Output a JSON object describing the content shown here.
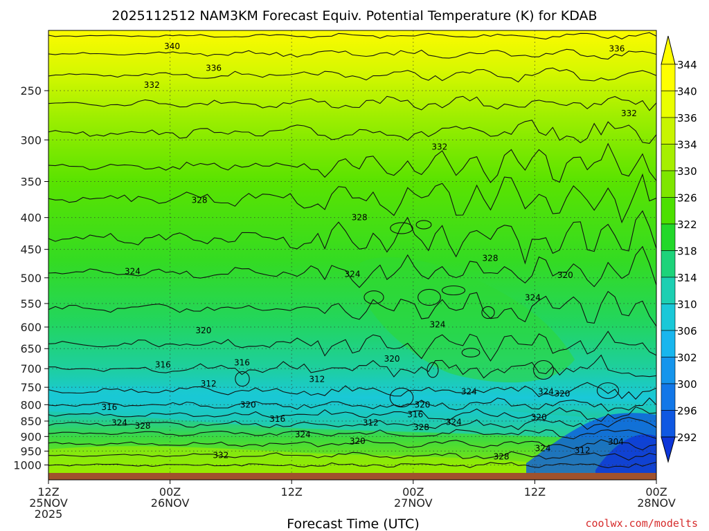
{
  "chart_data": {
    "type": "heatmap",
    "title": "2025112512 NAM3KM Forecast Equiv. Potential Temperature (K) for KDAB",
    "xlabel": "Forecast Time (UTC)",
    "ylabel": "",
    "credit": "coolwx.com/modelts",
    "x_ticks": [
      {
        "hour": 0,
        "line1": "12Z",
        "line2": "25NOV",
        "line3": "2025"
      },
      {
        "hour": 12,
        "line1": "00Z",
        "line2": "26NOV",
        "line3": ""
      },
      {
        "hour": 24,
        "line1": "12Z",
        "line2": "",
        "line3": ""
      },
      {
        "hour": 36,
        "line1": "00Z",
        "line2": "27NOV",
        "line3": ""
      },
      {
        "hour": 48,
        "line1": "12Z",
        "line2": "",
        "line3": ""
      },
      {
        "hour": 60,
        "line1": "00Z",
        "line2": "28NOV",
        "line3": ""
      }
    ],
    "x_range_hours": [
      0,
      60
    ],
    "y_axis": "pressure (hPa), log scale, inverted",
    "y_range": [
      1030,
      200
    ],
    "y_ticks": [
      250,
      300,
      350,
      400,
      450,
      500,
      550,
      600,
      650,
      700,
      750,
      800,
      850,
      900,
      950,
      1000
    ],
    "colorbar": {
      "labels": [
        344,
        340,
        336,
        334,
        330,
        326,
        322,
        318,
        314,
        310,
        306,
        302,
        300,
        296,
        292
      ],
      "colors": [
        "#ffff00",
        "#eaff00",
        "#c8f500",
        "#a6ef00",
        "#7ee600",
        "#4ce000",
        "#22d82a",
        "#1dd37a",
        "#1ccfb2",
        "#1ac8d8",
        "#18b6ee",
        "#1595ec",
        "#1277e8",
        "#0f58e2",
        "#0d36d8"
      ]
    },
    "contour_labels": [
      {
        "value": "340",
        "hour": 12.2,
        "p": 212
      },
      {
        "value": "336",
        "hour": 56.1,
        "p": 214
      },
      {
        "value": "336",
        "hour": 16.3,
        "p": 230
      },
      {
        "value": "332",
        "hour": 10.2,
        "p": 245
      },
      {
        "value": "332",
        "hour": 57.3,
        "p": 272
      },
      {
        "value": "332",
        "hour": 38.6,
        "p": 308
      },
      {
        "value": "328",
        "hour": 14.9,
        "p": 375
      },
      {
        "value": "328",
        "hour": 30.7,
        "p": 400
      },
      {
        "value": "328",
        "hour": 43.6,
        "p": 465
      },
      {
        "value": "324",
        "hour": 8.3,
        "p": 488
      },
      {
        "value": "324",
        "hour": 30.0,
        "p": 493
      },
      {
        "value": "324",
        "hour": 47.8,
        "p": 538
      },
      {
        "value": "324",
        "hour": 38.4,
        "p": 595
      },
      {
        "value": "320",
        "hour": 51.0,
        "p": 495
      },
      {
        "value": "320",
        "hour": 15.3,
        "p": 608
      },
      {
        "value": "320",
        "hour": 33.9,
        "p": 675
      },
      {
        "value": "316",
        "hour": 11.3,
        "p": 690
      },
      {
        "value": "316",
        "hour": 19.1,
        "p": 685
      },
      {
        "value": "316",
        "hour": 6.0,
        "p": 808
      },
      {
        "value": "316",
        "hour": 22.6,
        "p": 843
      },
      {
        "value": "316",
        "hour": 36.2,
        "p": 830
      },
      {
        "value": "312",
        "hour": 15.8,
        "p": 740
      },
      {
        "value": "312",
        "hour": 26.5,
        "p": 728
      },
      {
        "value": "312",
        "hour": 31.8,
        "p": 855
      },
      {
        "value": "312",
        "hour": 52.7,
        "p": 948
      },
      {
        "value": "320",
        "hour": 19.7,
        "p": 800
      },
      {
        "value": "320",
        "hour": 36.9,
        "p": 800
      },
      {
        "value": "320",
        "hour": 50.7,
        "p": 768
      },
      {
        "value": "320",
        "hour": 48.4,
        "p": 838
      },
      {
        "value": "320",
        "hour": 30.5,
        "p": 915
      },
      {
        "value": "324",
        "hour": 7.0,
        "p": 855
      },
      {
        "value": "324",
        "hour": 25.1,
        "p": 893
      },
      {
        "value": "324",
        "hour": 40.0,
        "p": 853
      },
      {
        "value": "324",
        "hour": 41.5,
        "p": 762
      },
      {
        "value": "324",
        "hour": 49.1,
        "p": 762
      },
      {
        "value": "324",
        "hour": 48.8,
        "p": 940
      },
      {
        "value": "328",
        "hour": 9.3,
        "p": 865
      },
      {
        "value": "328",
        "hour": 36.8,
        "p": 870
      },
      {
        "value": "328",
        "hour": 44.7,
        "p": 970
      },
      {
        "value": "332",
        "hour": 17.0,
        "p": 965
      },
      {
        "value": "304",
        "hour": 56.0,
        "p": 918
      }
    ]
  }
}
